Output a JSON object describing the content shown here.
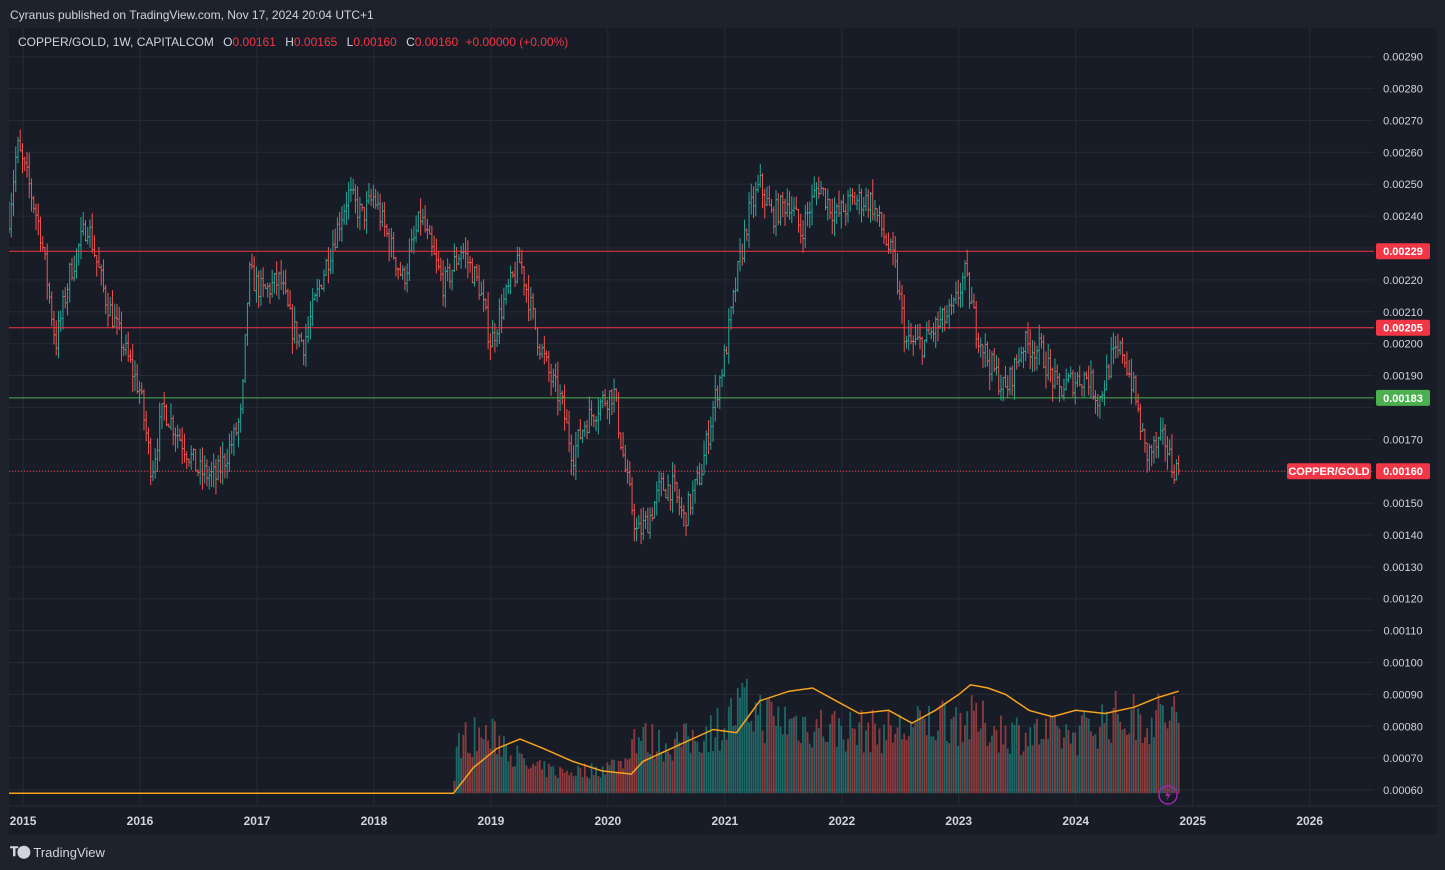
{
  "header": {
    "published": "Cyranus published on TradingView.com, Nov 17, 2024 20:04 UTC+1"
  },
  "legend": {
    "symbol": "COPPER/GOLD, 1W, CAPITALCOM",
    "o_key": "O",
    "o_val": "0.00161",
    "h_key": "H",
    "h_val": "0.00165",
    "l_key": "L",
    "l_val": "0.00160",
    "c_key": "C",
    "c_val": "0.00160",
    "change": "+0.00000 (+0.00%)"
  },
  "footer": {
    "brand": "TradingView"
  },
  "colors": {
    "up": "#26a69a",
    "down": "#ef5350",
    "ma": "#f7a21b",
    "resistance": "#f23645",
    "support": "#4caf50",
    "last": "#f23645",
    "background": "#181c27"
  },
  "chart_data": {
    "type": "candlestick",
    "interval": "1W",
    "ylim": [
      0.00055,
      0.00299
    ],
    "xlim": [
      2014.88,
      2026.55
    ],
    "y_ticks": [
      "0.00060",
      "0.00070",
      "0.00080",
      "0.00090",
      "0.00100",
      "0.00110",
      "0.00120",
      "0.00130",
      "0.00140",
      "0.00150",
      "0.00160",
      "0.00170",
      "0.00180",
      "0.00190",
      "0.00200",
      "0.00210",
      "0.00220",
      "0.00230",
      "0.00240",
      "0.00250",
      "0.00260",
      "0.00270",
      "0.00280",
      "0.00290"
    ],
    "x_ticks": [
      "2015",
      "2016",
      "2017",
      "2018",
      "2019",
      "2020",
      "2021",
      "2022",
      "2023",
      "2024",
      "2025",
      "2026"
    ],
    "horizontal_lines": [
      {
        "value": 0.00229,
        "label": "0.00229",
        "color": "#f23645"
      },
      {
        "value": 0.00205,
        "label": "0.00205",
        "color": "#f23645"
      },
      {
        "value": 0.00183,
        "label": "0.00183",
        "color": "#4caf50"
      }
    ],
    "last_price": {
      "value": 0.0016,
      "label": "0.00160",
      "name": "COPPER/GOLD"
    },
    "price_path": [
      [
        2014.88,
        0.0024
      ],
      [
        2014.95,
        0.00262
      ],
      [
        2015.05,
        0.0025
      ],
      [
        2015.15,
        0.00235
      ],
      [
        2015.28,
        0.002
      ],
      [
        2015.4,
        0.00222
      ],
      [
        2015.55,
        0.00238
      ],
      [
        2015.7,
        0.00215
      ],
      [
        2015.85,
        0.002
      ],
      [
        2016.0,
        0.00185
      ],
      [
        2016.1,
        0.0016
      ],
      [
        2016.2,
        0.0018
      ],
      [
        2016.35,
        0.0017
      ],
      [
        2016.5,
        0.0016
      ],
      [
        2016.65,
        0.00158
      ],
      [
        2016.8,
        0.0017
      ],
      [
        2016.87,
        0.00178
      ],
      [
        2016.93,
        0.00222
      ],
      [
        2017.05,
        0.00216
      ],
      [
        2017.2,
        0.0022
      ],
      [
        2017.3,
        0.00205
      ],
      [
        2017.4,
        0.002
      ],
      [
        2017.55,
        0.0022
      ],
      [
        2017.65,
        0.00232
      ],
      [
        2017.78,
        0.00247
      ],
      [
        2017.9,
        0.0024
      ],
      [
        2018.0,
        0.00246
      ],
      [
        2018.1,
        0.00235
      ],
      [
        2018.25,
        0.0022
      ],
      [
        2018.4,
        0.0024
      ],
      [
        2018.5,
        0.00228
      ],
      [
        2018.6,
        0.00218
      ],
      [
        2018.75,
        0.0023
      ],
      [
        2018.9,
        0.00218
      ],
      [
        2019.0,
        0.002
      ],
      [
        2019.1,
        0.00212
      ],
      [
        2019.25,
        0.00226
      ],
      [
        2019.4,
        0.00202
      ],
      [
        2019.5,
        0.0019
      ],
      [
        2019.6,
        0.00182
      ],
      [
        2019.7,
        0.00165
      ],
      [
        2019.8,
        0.00175
      ],
      [
        2019.95,
        0.00182
      ],
      [
        2020.05,
        0.00185
      ],
      [
        2020.15,
        0.0016
      ],
      [
        2020.25,
        0.0014
      ],
      [
        2020.35,
        0.00145
      ],
      [
        2020.45,
        0.00155
      ],
      [
        2020.55,
        0.00155
      ],
      [
        2020.65,
        0.00145
      ],
      [
        2020.8,
        0.0016
      ],
      [
        2020.9,
        0.0018
      ],
      [
        2021.0,
        0.00196
      ],
      [
        2021.1,
        0.0022
      ],
      [
        2021.2,
        0.0024
      ],
      [
        2021.3,
        0.0025
      ],
      [
        2021.4,
        0.0024
      ],
      [
        2021.55,
        0.00245
      ],
      [
        2021.65,
        0.00235
      ],
      [
        2021.8,
        0.0025
      ],
      [
        2021.95,
        0.0024
      ],
      [
        2022.1,
        0.00245
      ],
      [
        2022.25,
        0.00245
      ],
      [
        2022.35,
        0.00235
      ],
      [
        2022.45,
        0.00225
      ],
      [
        2022.55,
        0.002
      ],
      [
        2022.7,
        0.002
      ],
      [
        2022.8,
        0.00205
      ],
      [
        2022.95,
        0.0021
      ],
      [
        2023.05,
        0.00222
      ],
      [
        2023.15,
        0.00205
      ],
      [
        2023.25,
        0.00195
      ],
      [
        2023.4,
        0.00185
      ],
      [
        2023.55,
        0.002
      ],
      [
        2023.7,
        0.00198
      ],
      [
        2023.85,
        0.00185
      ],
      [
        2023.95,
        0.00188
      ],
      [
        2024.1,
        0.0019
      ],
      [
        2024.2,
        0.00182
      ],
      [
        2024.3,
        0.00195
      ],
      [
        2024.4,
        0.00198
      ],
      [
        2024.5,
        0.00185
      ],
      [
        2024.6,
        0.00165
      ],
      [
        2024.7,
        0.00168
      ],
      [
        2024.76,
        0.0017
      ],
      [
        2024.82,
        0.00162
      ],
      [
        2024.88,
        0.0016
      ]
    ],
    "volume_path": [
      [
        2018.68,
        0.0
      ],
      [
        2018.72,
        0.5
      ],
      [
        2018.9,
        0.55
      ],
      [
        2019.1,
        0.5
      ],
      [
        2019.3,
        0.25
      ],
      [
        2019.6,
        0.2
      ],
      [
        2019.9,
        0.22
      ],
      [
        2020.15,
        0.3
      ],
      [
        2020.2,
        0.55
      ],
      [
        2020.5,
        0.45
      ],
      [
        2020.7,
        0.5
      ],
      [
        2021.0,
        0.65
      ],
      [
        2021.15,
        0.82
      ],
      [
        2021.4,
        0.7
      ],
      [
        2021.7,
        0.65
      ],
      [
        2022.0,
        0.6
      ],
      [
        2022.3,
        0.58
      ],
      [
        2022.6,
        0.6
      ],
      [
        2022.9,
        0.72
      ],
      [
        2023.1,
        0.68
      ],
      [
        2023.4,
        0.58
      ],
      [
        2023.7,
        0.55
      ],
      [
        2024.0,
        0.55
      ],
      [
        2024.3,
        0.72
      ],
      [
        2024.6,
        0.7
      ],
      [
        2024.88,
        0.75
      ]
    ],
    "volume_ma": [
      [
        2014.88,
        0.00059
      ],
      [
        2018.68,
        0.00059
      ],
      [
        2018.85,
        0.00067
      ],
      [
        2019.05,
        0.00073
      ],
      [
        2019.25,
        0.00076
      ],
      [
        2019.45,
        0.00073
      ],
      [
        2019.7,
        0.00069
      ],
      [
        2019.95,
        0.00066
      ],
      [
        2020.2,
        0.00065
      ],
      [
        2020.3,
        0.00069
      ],
      [
        2020.6,
        0.00074
      ],
      [
        2020.9,
        0.00079
      ],
      [
        2021.1,
        0.00078
      ],
      [
        2021.3,
        0.00088
      ],
      [
        2021.55,
        0.00091
      ],
      [
        2021.75,
        0.00092
      ],
      [
        2021.95,
        0.00088
      ],
      [
        2022.15,
        0.00084
      ],
      [
        2022.4,
        0.00085
      ],
      [
        2022.6,
        0.00081
      ],
      [
        2022.8,
        0.00085
      ],
      [
        2023.0,
        0.0009
      ],
      [
        2023.1,
        0.00093
      ],
      [
        2023.25,
        0.00092
      ],
      [
        2023.4,
        0.0009
      ],
      [
        2023.6,
        0.00085
      ],
      [
        2023.8,
        0.00083
      ],
      [
        2024.0,
        0.00085
      ],
      [
        2024.25,
        0.00084
      ],
      [
        2024.5,
        0.00086
      ],
      [
        2024.7,
        0.00089
      ],
      [
        2024.88,
        0.00091
      ]
    ]
  }
}
